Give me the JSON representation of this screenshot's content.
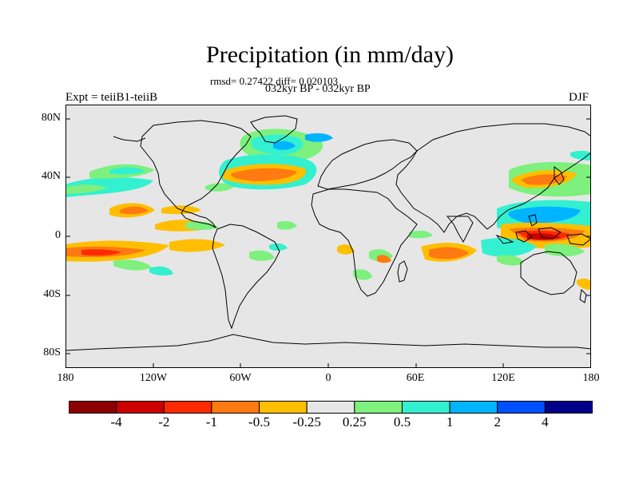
{
  "title": "Precipitation (in mm/day)",
  "stats_line": "rmsd= 0.27422 diff= 0.020103",
  "period_line": "032kyr BP - 032kyr BP",
  "expt_label": "Expt = teiiB1-teiiB",
  "season": "DJF",
  "lat_ticks": [
    "80N",
    "40N",
    "0",
    "40S",
    "80S"
  ],
  "lon_ticks": [
    "180",
    "120W",
    "60W",
    "0",
    "60E",
    "120E",
    "180"
  ],
  "colorbar": {
    "labels": [
      "-4",
      "-2",
      "-1",
      "-0.5",
      "-0.25",
      "0.25",
      "0.5",
      "1",
      "2",
      "4"
    ],
    "colors": [
      "#8b0000",
      "#cc0000",
      "#ff2a00",
      "#ff7a10",
      "#ffbf00",
      "#e6e6e6",
      "#7df07d",
      "#33f0d0",
      "#00b4ff",
      "#0050ff",
      "#000088"
    ]
  },
  "colors": {
    "ocean": "#e6e6e6",
    "coast": "#000000"
  }
}
